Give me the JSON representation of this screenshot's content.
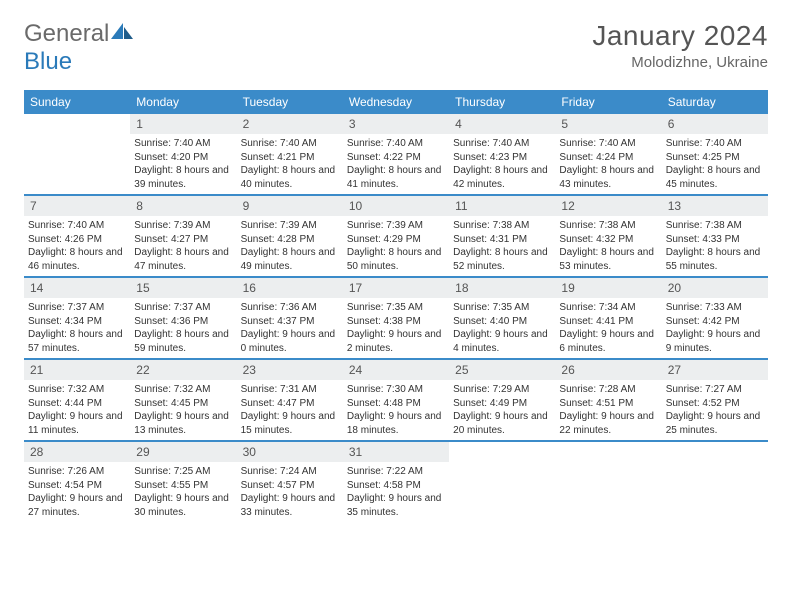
{
  "brand": {
    "part1": "General",
    "part2": "Blue"
  },
  "title": "January 2024",
  "location": "Molodizhne, Ukraine",
  "colors": {
    "header_bg": "#3b8bc9",
    "daynum_bg": "#eceeef",
    "text": "#333333",
    "brand_gray": "#6a6a6a",
    "brand_blue": "#2a7ab9"
  },
  "dow": [
    "Sunday",
    "Monday",
    "Tuesday",
    "Wednesday",
    "Thursday",
    "Friday",
    "Saturday"
  ],
  "weeks": [
    [
      {
        "n": "",
        "sr": "",
        "ss": "",
        "dl": ""
      },
      {
        "n": "1",
        "sr": "Sunrise: 7:40 AM",
        "ss": "Sunset: 4:20 PM",
        "dl": "Daylight: 8 hours and 39 minutes."
      },
      {
        "n": "2",
        "sr": "Sunrise: 7:40 AM",
        "ss": "Sunset: 4:21 PM",
        "dl": "Daylight: 8 hours and 40 minutes."
      },
      {
        "n": "3",
        "sr": "Sunrise: 7:40 AM",
        "ss": "Sunset: 4:22 PM",
        "dl": "Daylight: 8 hours and 41 minutes."
      },
      {
        "n": "4",
        "sr": "Sunrise: 7:40 AM",
        "ss": "Sunset: 4:23 PM",
        "dl": "Daylight: 8 hours and 42 minutes."
      },
      {
        "n": "5",
        "sr": "Sunrise: 7:40 AM",
        "ss": "Sunset: 4:24 PM",
        "dl": "Daylight: 8 hours and 43 minutes."
      },
      {
        "n": "6",
        "sr": "Sunrise: 7:40 AM",
        "ss": "Sunset: 4:25 PM",
        "dl": "Daylight: 8 hours and 45 minutes."
      }
    ],
    [
      {
        "n": "7",
        "sr": "Sunrise: 7:40 AM",
        "ss": "Sunset: 4:26 PM",
        "dl": "Daylight: 8 hours and 46 minutes."
      },
      {
        "n": "8",
        "sr": "Sunrise: 7:39 AM",
        "ss": "Sunset: 4:27 PM",
        "dl": "Daylight: 8 hours and 47 minutes."
      },
      {
        "n": "9",
        "sr": "Sunrise: 7:39 AM",
        "ss": "Sunset: 4:28 PM",
        "dl": "Daylight: 8 hours and 49 minutes."
      },
      {
        "n": "10",
        "sr": "Sunrise: 7:39 AM",
        "ss": "Sunset: 4:29 PM",
        "dl": "Daylight: 8 hours and 50 minutes."
      },
      {
        "n": "11",
        "sr": "Sunrise: 7:38 AM",
        "ss": "Sunset: 4:31 PM",
        "dl": "Daylight: 8 hours and 52 minutes."
      },
      {
        "n": "12",
        "sr": "Sunrise: 7:38 AM",
        "ss": "Sunset: 4:32 PM",
        "dl": "Daylight: 8 hours and 53 minutes."
      },
      {
        "n": "13",
        "sr": "Sunrise: 7:38 AM",
        "ss": "Sunset: 4:33 PM",
        "dl": "Daylight: 8 hours and 55 minutes."
      }
    ],
    [
      {
        "n": "14",
        "sr": "Sunrise: 7:37 AM",
        "ss": "Sunset: 4:34 PM",
        "dl": "Daylight: 8 hours and 57 minutes."
      },
      {
        "n": "15",
        "sr": "Sunrise: 7:37 AM",
        "ss": "Sunset: 4:36 PM",
        "dl": "Daylight: 8 hours and 59 minutes."
      },
      {
        "n": "16",
        "sr": "Sunrise: 7:36 AM",
        "ss": "Sunset: 4:37 PM",
        "dl": "Daylight: 9 hours and 0 minutes."
      },
      {
        "n": "17",
        "sr": "Sunrise: 7:35 AM",
        "ss": "Sunset: 4:38 PM",
        "dl": "Daylight: 9 hours and 2 minutes."
      },
      {
        "n": "18",
        "sr": "Sunrise: 7:35 AM",
        "ss": "Sunset: 4:40 PM",
        "dl": "Daylight: 9 hours and 4 minutes."
      },
      {
        "n": "19",
        "sr": "Sunrise: 7:34 AM",
        "ss": "Sunset: 4:41 PM",
        "dl": "Daylight: 9 hours and 6 minutes."
      },
      {
        "n": "20",
        "sr": "Sunrise: 7:33 AM",
        "ss": "Sunset: 4:42 PM",
        "dl": "Daylight: 9 hours and 9 minutes."
      }
    ],
    [
      {
        "n": "21",
        "sr": "Sunrise: 7:32 AM",
        "ss": "Sunset: 4:44 PM",
        "dl": "Daylight: 9 hours and 11 minutes."
      },
      {
        "n": "22",
        "sr": "Sunrise: 7:32 AM",
        "ss": "Sunset: 4:45 PM",
        "dl": "Daylight: 9 hours and 13 minutes."
      },
      {
        "n": "23",
        "sr": "Sunrise: 7:31 AM",
        "ss": "Sunset: 4:47 PM",
        "dl": "Daylight: 9 hours and 15 minutes."
      },
      {
        "n": "24",
        "sr": "Sunrise: 7:30 AM",
        "ss": "Sunset: 4:48 PM",
        "dl": "Daylight: 9 hours and 18 minutes."
      },
      {
        "n": "25",
        "sr": "Sunrise: 7:29 AM",
        "ss": "Sunset: 4:49 PM",
        "dl": "Daylight: 9 hours and 20 minutes."
      },
      {
        "n": "26",
        "sr": "Sunrise: 7:28 AM",
        "ss": "Sunset: 4:51 PM",
        "dl": "Daylight: 9 hours and 22 minutes."
      },
      {
        "n": "27",
        "sr": "Sunrise: 7:27 AM",
        "ss": "Sunset: 4:52 PM",
        "dl": "Daylight: 9 hours and 25 minutes."
      }
    ],
    [
      {
        "n": "28",
        "sr": "Sunrise: 7:26 AM",
        "ss": "Sunset: 4:54 PM",
        "dl": "Daylight: 9 hours and 27 minutes."
      },
      {
        "n": "29",
        "sr": "Sunrise: 7:25 AM",
        "ss": "Sunset: 4:55 PM",
        "dl": "Daylight: 9 hours and 30 minutes."
      },
      {
        "n": "30",
        "sr": "Sunrise: 7:24 AM",
        "ss": "Sunset: 4:57 PM",
        "dl": "Daylight: 9 hours and 33 minutes."
      },
      {
        "n": "31",
        "sr": "Sunrise: 7:22 AM",
        "ss": "Sunset: 4:58 PM",
        "dl": "Daylight: 9 hours and 35 minutes."
      },
      {
        "n": "",
        "sr": "",
        "ss": "",
        "dl": ""
      },
      {
        "n": "",
        "sr": "",
        "ss": "",
        "dl": ""
      },
      {
        "n": "",
        "sr": "",
        "ss": "",
        "dl": ""
      }
    ]
  ]
}
